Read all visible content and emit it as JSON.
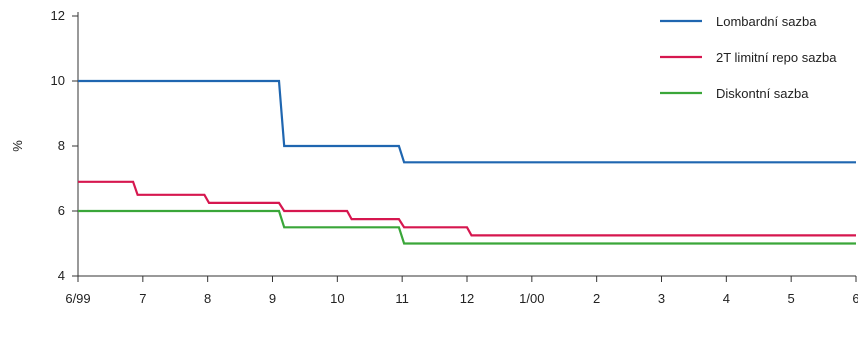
{
  "chart_data": {
    "type": "line",
    "ylabel": "%",
    "ylim": [
      4,
      12
    ],
    "yticks": [
      "4",
      "6",
      "8",
      "10",
      "12"
    ],
    "xlim": [
      0,
      12
    ],
    "xticks": [
      "6/99",
      "7",
      "8",
      "9",
      "10",
      "11",
      "12",
      "1/00",
      "2",
      "3",
      "4",
      "5",
      "6"
    ],
    "legend_position": "top-right",
    "series": [
      {
        "name": "Lombardní sazba",
        "color": "#1f66b0",
        "points": [
          [
            0,
            10.0
          ],
          [
            3.1,
            10.0
          ],
          [
            3.18,
            8.0
          ],
          [
            4.95,
            8.0
          ],
          [
            5.03,
            7.5
          ],
          [
            12.0,
            7.5
          ]
        ]
      },
      {
        "name": "2T limitní repo sazba",
        "color": "#d6174f",
        "points": [
          [
            0,
            6.9
          ],
          [
            0.85,
            6.9
          ],
          [
            0.92,
            6.5
          ],
          [
            1.95,
            6.5
          ],
          [
            2.02,
            6.25
          ],
          [
            3.1,
            6.25
          ],
          [
            3.18,
            6.0
          ],
          [
            4.15,
            6.0
          ],
          [
            4.22,
            5.75
          ],
          [
            4.95,
            5.75
          ],
          [
            5.03,
            5.5
          ],
          [
            6.0,
            5.5
          ],
          [
            6.07,
            5.25
          ],
          [
            12.0,
            5.25
          ]
        ]
      },
      {
        "name": "Diskontní sazba",
        "color": "#3aa639",
        "points": [
          [
            0,
            6.0
          ],
          [
            3.1,
            6.0
          ],
          [
            3.18,
            5.5
          ],
          [
            4.95,
            5.5
          ],
          [
            5.03,
            5.0
          ],
          [
            12.0,
            5.0
          ]
        ]
      }
    ]
  }
}
